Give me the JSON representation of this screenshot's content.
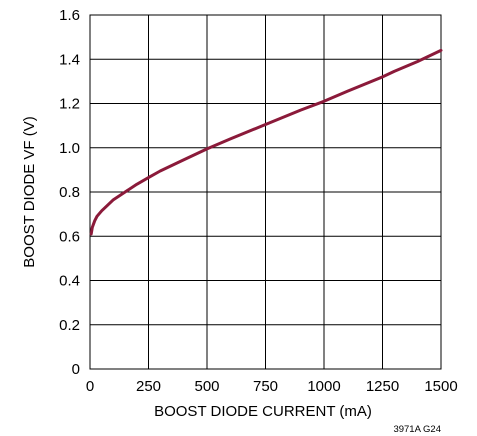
{
  "chart_data": {
    "type": "line",
    "title": "",
    "xlabel": "BOOST DIODE CURRENT (mA)",
    "ylabel": "BOOST DIODE VF (V)",
    "xlim": [
      0,
      1500
    ],
    "ylim": [
      0,
      1.6
    ],
    "x_ticks": [
      "0",
      "250",
      "500",
      "750",
      "1000",
      "1250",
      "1500"
    ],
    "y_ticks": [
      "0",
      "0.2",
      "0.4",
      "0.6",
      "0.8",
      "1.0",
      "1.2",
      "1.4",
      "1.6"
    ],
    "grid": true,
    "series": [
      {
        "x": [
          5,
          10,
          20,
          30,
          50,
          75,
          100,
          150,
          200,
          250,
          300,
          400,
          500,
          600,
          750,
          900,
          1000,
          1100,
          1250,
          1300,
          1400,
          1500
        ],
        "y": [
          0.61,
          0.64,
          0.67,
          0.69,
          0.715,
          0.74,
          0.765,
          0.8,
          0.835,
          0.865,
          0.895,
          0.945,
          0.995,
          1.04,
          1.105,
          1.17,
          1.21,
          1.255,
          1.32,
          1.345,
          1.39,
          1.44
        ],
        "color": "#8b1a3a"
      }
    ],
    "figure_code": "3971A G24"
  }
}
